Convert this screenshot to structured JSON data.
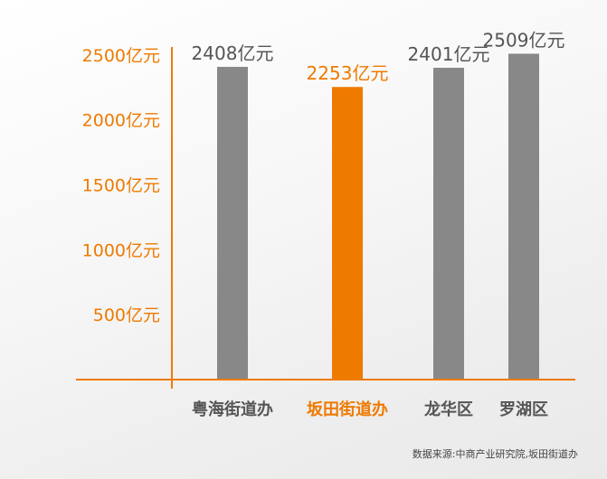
{
  "chart_data": {
    "type": "bar",
    "categories": [
      "粤海街道办",
      "坂田街道办",
      "龙华区",
      "罗湖区"
    ],
    "series": [
      {
        "values": [
          2408,
          2253,
          2401,
          2509
        ]
      }
    ],
    "data_labels": [
      "2408亿元",
      "2253亿元",
      "2401亿元",
      "2509亿元"
    ],
    "y_ticks": [
      500,
      1000,
      1500,
      2000,
      2500
    ],
    "y_tick_labels": [
      "500亿元",
      "1000亿元",
      "1500亿元",
      "2000亿元",
      "2500亿元"
    ],
    "ylim": [
      0,
      2750
    ],
    "highlight_index": 1,
    "grid": false,
    "legend": "none"
  },
  "colors": {
    "accent": "#ee7a00",
    "bar": "#888888",
    "label": "#555555",
    "axis": "#ee7a00"
  },
  "source": "数据来源:中商产业研究院,坂田街道办"
}
